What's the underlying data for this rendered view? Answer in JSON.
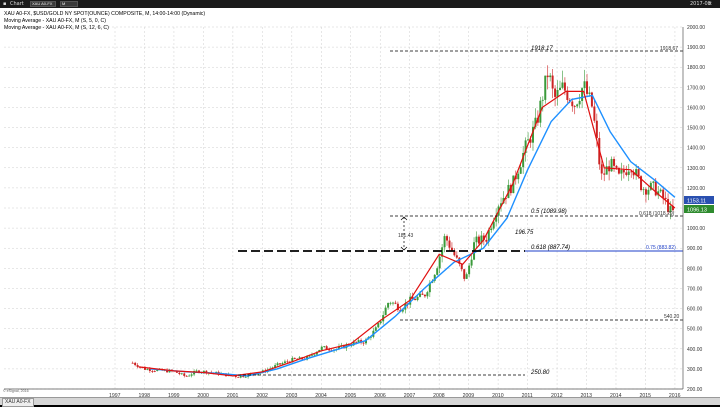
{
  "window": {
    "app_label": "Chart",
    "symbol_box": "XAU A0-FX",
    "field_box": "M",
    "time_readout": "2017-08"
  },
  "chart": {
    "title_line": "XAU A0-FX, $USD/GOLD NY SPOT(OUNCE) COMPOSITE, M, 14:00-14:00 (Dynamic)",
    "ma_line_1": "Moving Average - XAU A0-FX, M (S, 5, 0, C)",
    "ma_line_2": "Moving Average - XAU A0-FX, M (S, 12, 6, C)",
    "copyright": "© eSignal, 2016",
    "colors": {
      "up_candle": "#3a9a3a",
      "down_candle": "#cc2222",
      "ma_fast": "#e01010",
      "ma_slow": "#1e90ff",
      "fib_blue": "#1e3fc8",
      "price_box_blue": "#2a50b0",
      "price_box_green": "#2e8b2e"
    }
  },
  "annotations": {
    "high_label": "1918.17",
    "high_right": "1918.67",
    "fib50": "0.5 (1089.98)",
    "fib618_right": "0.618 (1018.29)",
    "range_left": "181.43",
    "range_mid": "196.75",
    "fib618": "0.618 (887.74)",
    "fib75_right": "0.75 (883.82)",
    "level_540": "540.20",
    "low_label": "250.80"
  },
  "price_boxes": {
    "ma_slow_value": "1153.11",
    "last_price": "1096.13"
  },
  "status": {
    "tab": "XAU A0-FX"
  },
  "chart_data": {
    "type": "candlestick",
    "title": "XAU A0-FX, $USD/GOLD NY SPOT(OUNCE) COMPOSITE, M, 14:00-14:00 (Dynamic)",
    "ylim": [
      200,
      2000
    ],
    "y_ticks": [
      200,
      300,
      400,
      500,
      600,
      700,
      800,
      900,
      1000,
      1100,
      1200,
      1300,
      1400,
      1500,
      1600,
      1700,
      1800,
      1900,
      2000
    ],
    "x_ticks": [
      "1997",
      "1998",
      "1999",
      "2000",
      "2001",
      "2002",
      "2003",
      "2004",
      "2005",
      "2006",
      "2007",
      "2008",
      "2009",
      "2010",
      "2011",
      "2012",
      "2013",
      "2014",
      "2015",
      "2016"
    ],
    "price_path": [
      [
        1997.6,
        330
      ],
      [
        1998.0,
        300
      ],
      [
        1998.5,
        292
      ],
      [
        1999.0,
        288
      ],
      [
        1999.4,
        262
      ],
      [
        1999.8,
        290
      ],
      [
        2000.3,
        282
      ],
      [
        2000.8,
        270
      ],
      [
        2001.2,
        262
      ],
      [
        2001.6,
        272
      ],
      [
        2002.0,
        285
      ],
      [
        2002.5,
        318
      ],
      [
        2003.0,
        345
      ],
      [
        2003.5,
        352
      ],
      [
        2004.0,
        405
      ],
      [
        2004.5,
        398
      ],
      [
        2005.0,
        425
      ],
      [
        2005.5,
        438
      ],
      [
        2005.9,
        505
      ],
      [
        2006.3,
        640
      ],
      [
        2006.7,
        600
      ],
      [
        2007.0,
        640
      ],
      [
        2007.5,
        665
      ],
      [
        2007.9,
        800
      ],
      [
        2008.2,
        960
      ],
      [
        2008.6,
        840
      ],
      [
        2008.9,
        740
      ],
      [
        2009.2,
        930
      ],
      [
        2009.6,
        950
      ],
      [
        2010.0,
        1120
      ],
      [
        2010.5,
        1220
      ],
      [
        2010.9,
        1390
      ],
      [
        2011.3,
        1520
      ],
      [
        2011.7,
        1780
      ],
      [
        2011.9,
        1640
      ],
      [
        2012.2,
        1700
      ],
      [
        2012.6,
        1620
      ],
      [
        2012.9,
        1710
      ],
      [
        2013.2,
        1600
      ],
      [
        2013.5,
        1250
      ],
      [
        2013.8,
        1320
      ],
      [
        2014.1,
        1250
      ],
      [
        2014.5,
        1320
      ],
      [
        2014.9,
        1200
      ],
      [
        2015.3,
        1200
      ],
      [
        2015.6,
        1150
      ],
      [
        2015.9,
        1070
      ],
      [
        2016.0,
        1096
      ]
    ],
    "ma_fast": [
      [
        1997.8,
        310
      ],
      [
        1999.0,
        290
      ],
      [
        2000.0,
        282
      ],
      [
        2001.0,
        265
      ],
      [
        2002.0,
        285
      ],
      [
        2003.0,
        335
      ],
      [
        2004.0,
        390
      ],
      [
        2005.0,
        425
      ],
      [
        2006.0,
        540
      ],
      [
        2007.0,
        640
      ],
      [
        2008.0,
        870
      ],
      [
        2008.8,
        820
      ],
      [
        2009.5,
        940
      ],
      [
        2010.5,
        1220
      ],
      [
        2011.5,
        1600
      ],
      [
        2012.3,
        1680
      ],
      [
        2012.9,
        1680
      ],
      [
        2013.6,
        1300
      ],
      [
        2014.5,
        1290
      ],
      [
        2015.5,
        1160
      ],
      [
        2016.0,
        1100
      ]
    ],
    "ma_slow": [
      [
        1998.2,
        300
      ],
      [
        1999.5,
        285
      ],
      [
        2000.5,
        278
      ],
      [
        2001.5,
        265
      ],
      [
        2002.5,
        300
      ],
      [
        2003.5,
        350
      ],
      [
        2004.5,
        395
      ],
      [
        2005.5,
        440
      ],
      [
        2006.5,
        560
      ],
      [
        2007.5,
        700
      ],
      [
        2008.5,
        830
      ],
      [
        2009.5,
        900
      ],
      [
        2010.3,
        1050
      ],
      [
        2011.0,
        1290
      ],
      [
        2011.8,
        1530
      ],
      [
        2012.5,
        1640
      ],
      [
        2013.2,
        1660
      ],
      [
        2013.8,
        1480
      ],
      [
        2014.5,
        1330
      ],
      [
        2015.3,
        1240
      ],
      [
        2016.0,
        1153
      ]
    ]
  }
}
